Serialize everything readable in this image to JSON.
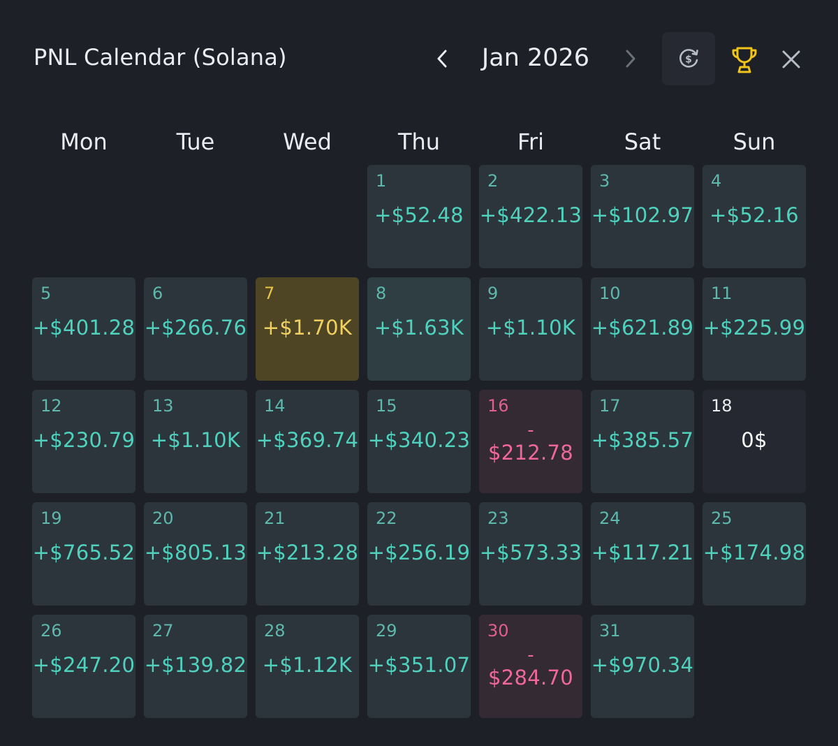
{
  "header": {
    "title": "PNL Calendar (Solana)",
    "month_label": "Jan 2026"
  },
  "icons": {
    "prev": "chevron-left-icon",
    "next": "chevron-right-icon",
    "currency": "currency-swap-icon",
    "trophy": "trophy-icon",
    "close": "close-icon"
  },
  "colors": {
    "background": "#1e2028",
    "positive": "#4fd1be",
    "negative": "#f0689a",
    "highlight": "#f0d060",
    "trophy": "#f0c419"
  },
  "weekdays": [
    "Mon",
    "Tue",
    "Wed",
    "Thu",
    "Fri",
    "Sat",
    "Sun"
  ],
  "days": [
    {
      "day": "1",
      "value": "+$52.48"
    },
    {
      "day": "2",
      "value": "+$422.13"
    },
    {
      "day": "3",
      "value": "+$102.97"
    },
    {
      "day": "4",
      "value": "+$52.16"
    },
    {
      "day": "5",
      "value": "+$401.28"
    },
    {
      "day": "6",
      "value": "+$266.76"
    },
    {
      "day": "7",
      "value": "+$1.70K"
    },
    {
      "day": "8",
      "value": "+$1.63K"
    },
    {
      "day": "9",
      "value": "+$1.10K"
    },
    {
      "day": "10",
      "value": "+$621.89"
    },
    {
      "day": "11",
      "value": "+$225.99"
    },
    {
      "day": "12",
      "value": "+$230.79"
    },
    {
      "day": "13",
      "value": "+$1.10K"
    },
    {
      "day": "14",
      "value": "+$369.74"
    },
    {
      "day": "15",
      "value": "+$340.23"
    },
    {
      "day": "16",
      "sign": "-",
      "value": "$212.78"
    },
    {
      "day": "17",
      "value": "+$385.57"
    },
    {
      "day": "18",
      "value": "0$"
    },
    {
      "day": "19",
      "value": "+$765.52"
    },
    {
      "day": "20",
      "value": "+$805.13"
    },
    {
      "day": "21",
      "value": "+$213.28"
    },
    {
      "day": "22",
      "value": "+$256.19"
    },
    {
      "day": "23",
      "value": "+$573.33"
    },
    {
      "day": "24",
      "value": "+$117.21"
    },
    {
      "day": "25",
      "value": "+$174.98"
    },
    {
      "day": "26",
      "value": "+$247.20"
    },
    {
      "day": "27",
      "value": "+$139.82"
    },
    {
      "day": "28",
      "value": "+$1.12K"
    },
    {
      "day": "29",
      "value": "+$351.07"
    },
    {
      "day": "30",
      "sign": "-",
      "value": "$284.70"
    },
    {
      "day": "31",
      "value": "+$970.34"
    }
  ]
}
